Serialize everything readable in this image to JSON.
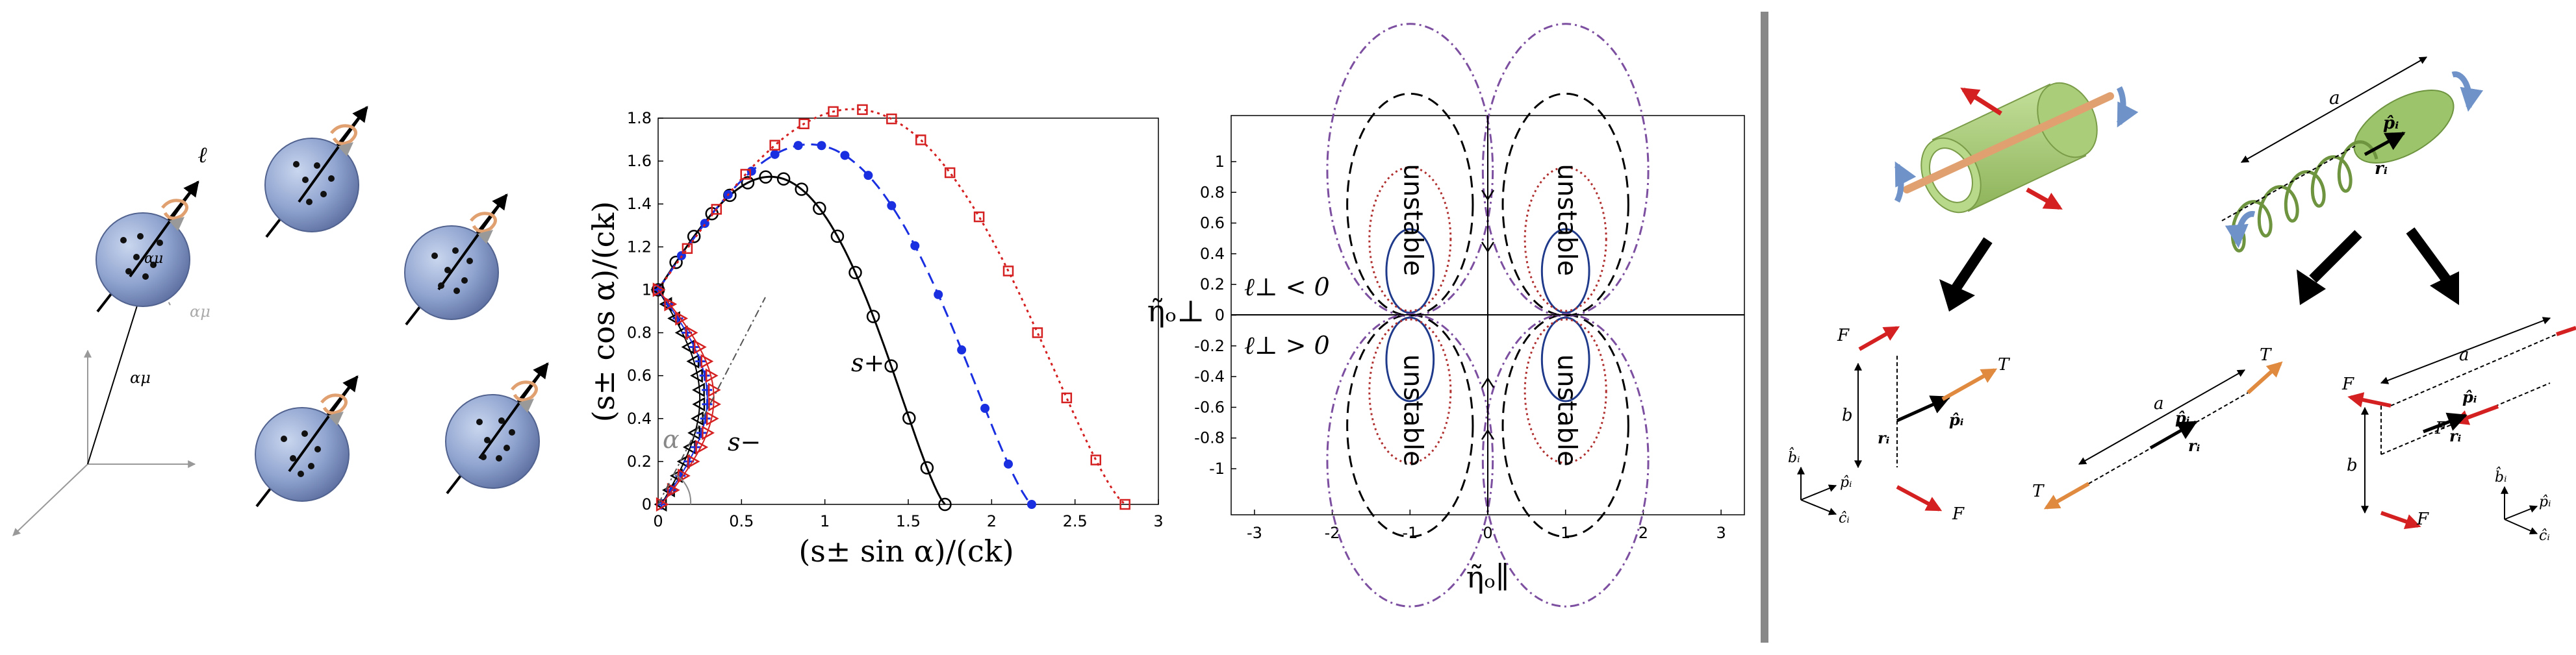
{
  "panel_a": {
    "spheres": [
      {
        "dots": [
          [
            -30,
            -30
          ],
          [
            -4,
            -36
          ],
          [
            26,
            -26
          ],
          [
            -10,
            -4
          ],
          [
            16,
            8
          ],
          [
            -22,
            18
          ],
          [
            4,
            26
          ]
        ]
      },
      {
        "dots": [
          [
            -24,
            -32
          ],
          [
            8,
            -30
          ],
          [
            30,
            -10
          ],
          [
            -10,
            -8
          ],
          [
            18,
            14
          ],
          [
            -4,
            26
          ]
        ]
      },
      {
        "dots": [
          [
            -26,
            -26
          ],
          [
            6,
            -34
          ],
          [
            28,
            -18
          ],
          [
            -6,
            -4
          ],
          [
            20,
            12
          ],
          [
            -16,
            20
          ],
          [
            8,
            28
          ]
        ]
      },
      {
        "dots": [
          [
            -28,
            -24
          ],
          [
            4,
            -32
          ],
          [
            24,
            -8
          ],
          [
            -14,
            6
          ],
          [
            14,
            18
          ],
          [
            -2,
            30
          ]
        ]
      },
      {
        "dots": [
          [
            -20,
            -30
          ],
          [
            14,
            -32
          ],
          [
            30,
            -14
          ],
          [
            -8,
            -2
          ],
          [
            22,
            10
          ],
          [
            -14,
            24
          ],
          [
            10,
            26
          ]
        ]
      }
    ],
    "ell_label": "ℓ",
    "alpha_mu_center": "αμ",
    "alpha_mu_position": "αμ",
    "alpha_mu_offset": "αμ"
  },
  "chart_data": {
    "type": "line",
    "xlabel": "(s± sin α)/(ck)",
    "ylabel": "(s± cos α)/(ck)",
    "xlim": [
      0,
      3
    ],
    "ylim": [
      0,
      1.8
    ],
    "xticks": [
      "0",
      "0.5",
      "1",
      "1.5",
      "2",
      "2.5",
      "3"
    ],
    "yticks": [
      "0",
      "0.2",
      "0.4",
      "0.6",
      "0.8",
      "1",
      "1.2",
      "1.4",
      "1.6",
      "1.8"
    ],
    "series": [
      {
        "color": "#000000",
        "marker": "circle",
        "style": "solid",
        "R": 0.86,
        "h": 1.0
      },
      {
        "color": "#1a2fe0",
        "marker": "star",
        "style": "dashed",
        "R": 1.12,
        "h": 1.0
      },
      {
        "color": "#d42020",
        "marker": "square",
        "style": "dotted",
        "R": 1.4,
        "h": 1.0
      }
    ],
    "minus_branches": [
      {
        "color": "#000000",
        "marker": "triangle-left",
        "scale": 0.8
      },
      {
        "color": "#1a2fe0",
        "marker": "plus",
        "scale": 0.95
      },
      {
        "color": "#d42020",
        "marker": "triangle-right",
        "scale": 1.08
      }
    ],
    "annotations": {
      "s_plus": "s+",
      "s_minus": "s−",
      "alpha": "α"
    }
  },
  "stability_map": {
    "xlabel": "η̃ₒ∥",
    "ylabel": "η̃ₒ⊥",
    "xlim": [
      -3.3,
      3.3
    ],
    "ylim": [
      -1.3,
      1.3
    ],
    "xticks": [
      "-3",
      "-2",
      "-1",
      "0",
      "1",
      "2",
      "3"
    ],
    "yticks": [
      "-1",
      "-0.8",
      "-0.6",
      "-0.4",
      "-0.2",
      "0",
      "0.2",
      "0.4",
      "0.6",
      "0.8",
      "1"
    ],
    "region_label": "unstable",
    "ell_neg": "ℓ⊥ < 0",
    "ell_pos": "ℓ⊥ > 0",
    "curves": [
      {
        "color": "#1f3a8a",
        "style": "solid",
        "r": 0.32,
        "off": 0.32
      },
      {
        "color": "#b03030",
        "style": "dotted",
        "r": 0.55,
        "off": 0.55
      },
      {
        "color": "#000000",
        "style": "dashed",
        "r": 0.85,
        "off": 0.8
      },
      {
        "color": "#7d4fa0",
        "style": "dashdot",
        "r": 1.12,
        "off": 1.05
      }
    ]
  },
  "panel_d": {
    "a_label": "a",
    "b_label": "b",
    "F_label": "F",
    "T_label": "T",
    "p_label": "p̂ᵢ",
    "r_label": "rᵢ",
    "b_hat": "b̂ᵢ",
    "p_hat": "p̂ᵢ",
    "c_hat": "ĉᵢ",
    "colors": {
      "green": "#9cc46a",
      "orange": "#e08a40",
      "red": "#d42020",
      "blue": "#6f93c8",
      "rod": "#e0a070"
    }
  }
}
